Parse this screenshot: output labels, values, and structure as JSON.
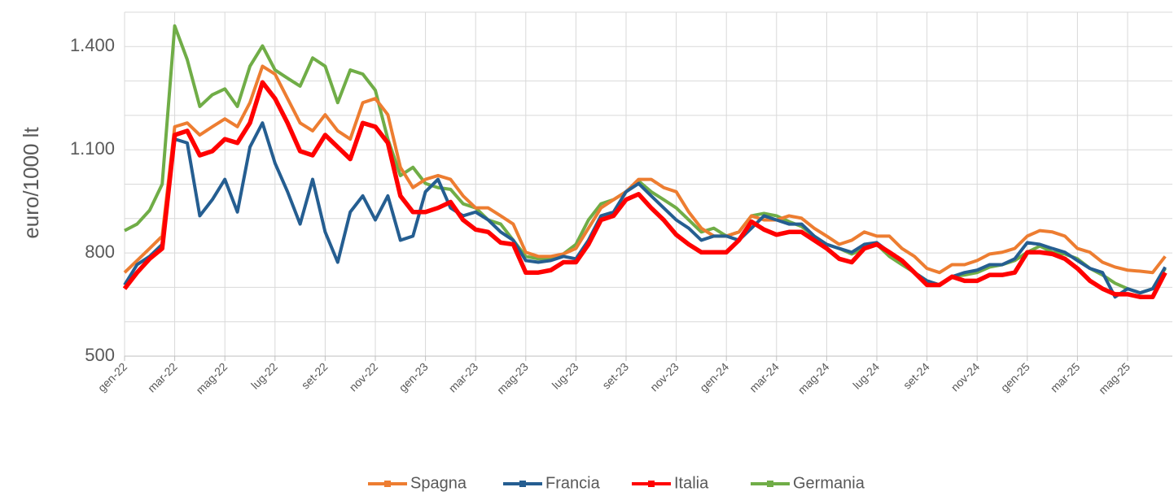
{
  "chart_data": {
    "type": "line",
    "y_label": "euro/1000 lt",
    "categories": [
      "gen-22",
      null,
      null,
      null,
      "mar-22",
      null,
      null,
      null,
      "mag-22",
      null,
      null,
      null,
      "lug-22",
      null,
      null,
      null,
      "set-22",
      null,
      null,
      null,
      "nov-22",
      null,
      null,
      null,
      "gen-23",
      null,
      null,
      null,
      "mar-23",
      null,
      null,
      null,
      "mag-23",
      null,
      null,
      null,
      "lug-23",
      null,
      null,
      null,
      "set-23",
      null,
      null,
      null,
      "nov-23",
      null,
      null,
      null,
      "gen-24",
      null,
      null,
      null,
      "mar-24",
      null,
      null,
      null,
      "mag-24",
      null,
      null,
      null,
      "lug-24",
      null,
      null,
      null,
      "set-24",
      null,
      null,
      null,
      "nov-24",
      null,
      null,
      null,
      "gen-25",
      null,
      null,
      null,
      "mar-25",
      null,
      null,
      null,
      "mag-25",
      null,
      null,
      null
    ],
    "series": [
      {
        "name": "Spagna",
        "color": "#ed7d31",
        "values": [
          743,
          778,
          813,
          849,
          1167,
          1178,
          1143,
          1167,
          1190,
          1167,
          1237,
          1343,
          1320,
          1249,
          1178,
          1155,
          1202,
          1155,
          1131,
          1237,
          1249,
          1202,
          1049,
          990,
          1014,
          1025,
          1014,
          966,
          931,
          931,
          908,
          884,
          802,
          790,
          790,
          797,
          813,
          872,
          931,
          955,
          978,
          1014,
          1014,
          990,
          978,
          919,
          872,
          849,
          849,
          861,
          908,
          896,
          896,
          908,
          901,
          872,
          849,
          825,
          837,
          861,
          849,
          849,
          813,
          790,
          755,
          743,
          766,
          766,
          778,
          797,
          802,
          813,
          849,
          865,
          861,
          849,
          813,
          802,
          773,
          759,
          750,
          747,
          743,
          790
        ]
      },
      {
        "name": "Francia",
        "color": "#255e91",
        "values": [
          707,
          766,
          790,
          825,
          1131,
          1120,
          908,
          955,
          1014,
          919,
          1108,
          1178,
          1061,
          978,
          884,
          1014,
          861,
          773,
          919,
          966,
          896,
          966,
          837,
          849,
          978,
          1014,
          931,
          908,
          919,
          896,
          861,
          837,
          778,
          773,
          778,
          790,
          783,
          837,
          908,
          919,
          978,
          1002,
          966,
          931,
          896,
          872,
          837,
          849,
          849,
          837,
          872,
          908,
          896,
          884,
          884,
          849,
          825,
          813,
          802,
          825,
          830,
          802,
          778,
          743,
          719,
          707,
          731,
          743,
          750,
          766,
          766,
          783,
          830,
          825,
          813,
          802,
          778,
          755,
          743,
          672,
          696,
          684,
          696,
          759
        ]
      },
      {
        "name": "Italia",
        "color": "#ff0000",
        "values": [
          696,
          743,
          783,
          813,
          1143,
          1155,
          1084,
          1096,
          1131,
          1120,
          1178,
          1296,
          1249,
          1178,
          1096,
          1084,
          1143,
          1108,
          1073,
          1178,
          1167,
          1120,
          966,
          919,
          919,
          931,
          948,
          896,
          868,
          861,
          830,
          825,
          743,
          743,
          750,
          773,
          773,
          825,
          896,
          908,
          955,
          971,
          931,
          896,
          853,
          825,
          802,
          802,
          802,
          837,
          891,
          868,
          853,
          861,
          861,
          837,
          813,
          783,
          773,
          813,
          825,
          802,
          778,
          743,
          707,
          707,
          731,
          719,
          719,
          736,
          736,
          743,
          802,
          802,
          797,
          783,
          755,
          719,
          696,
          680,
          680,
          672,
          672,
          743
        ]
      },
      {
        "name": "Germania",
        "color": "#70ad47",
        "values": [
          865,
          884,
          924,
          1000,
          1460,
          1362,
          1226,
          1260,
          1277,
          1226,
          1343,
          1402,
          1332,
          1308,
          1285,
          1367,
          1343,
          1237,
          1332,
          1320,
          1273,
          1131,
          1025,
          1049,
          1002,
          990,
          985,
          943,
          931,
          896,
          884,
          837,
          790,
          783,
          783,
          797,
          825,
          896,
          943,
          955,
          978,
          1009,
          978,
          955,
          931,
          896,
          861,
          872,
          849,
          861,
          908,
          915,
          908,
          891,
          877,
          849,
          825,
          813,
          797,
          813,
          825,
          790,
          766,
          743,
          719,
          707,
          731,
          736,
          743,
          759,
          766,
          778,
          802,
          820,
          802,
          797,
          783,
          755,
          736,
          712,
          696,
          684,
          696,
          755
        ]
      }
    ],
    "ylim": [
      500,
      1500
    ],
    "yticks": [
      500,
      800,
      {
        "value": 1100,
        "label": "1.100"
      },
      {
        "value": 1400,
        "label": "1.400"
      }
    ],
    "minor_yticks": [
      600,
      700,
      900,
      1000,
      1200,
      1300,
      1500
    ],
    "grid": true,
    "legend": "bottom"
  }
}
